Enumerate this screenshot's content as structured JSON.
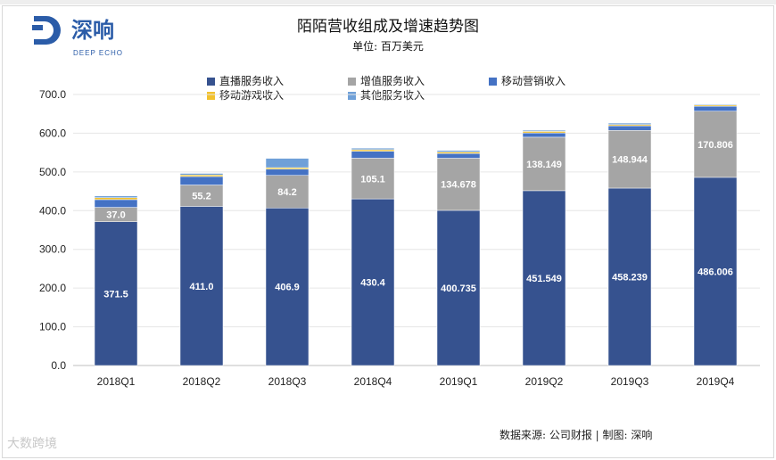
{
  "brand": {
    "name": "深响",
    "sub": "DEEP ECHO"
  },
  "watermark": "大数跨境",
  "source": "数据来源: 公司财报 | 制图: 深响",
  "chart_data": {
    "type": "bar",
    "stacked": true,
    "title": "陌陌营收组成及增速趋势图",
    "subtitle": "单位: 百万美元",
    "categories": [
      "2018Q1",
      "2018Q2",
      "2018Q3",
      "2018Q4",
      "2019Q1",
      "2019Q2",
      "2019Q3",
      "2019Q4"
    ],
    "ylim": [
      0,
      700
    ],
    "yticks": [
      "0.0",
      "100.0",
      "200.0",
      "300.0",
      "400.0",
      "500.0",
      "600.0",
      "700.0"
    ],
    "grid": true,
    "legend_position": "top",
    "series": [
      {
        "name": "直播服务收入",
        "color": "#36528f",
        "values": [
          371.5,
          411.0,
          406.9,
          430.4,
          400.735,
          451.549,
          458.239,
          486.006
        ],
        "labels": [
          "371.5",
          "411.0",
          "406.9",
          "430.4",
          "400.735",
          "451.549",
          "458.239",
          "486.006"
        ]
      },
      {
        "name": "增值服务收入",
        "color": "#a5a5a5",
        "values": [
          37.0,
          55.2,
          84.2,
          105.1,
          134.678,
          138.149,
          148.944,
          170.806
        ],
        "labels": [
          "37.0",
          "55.2",
          "84.2",
          "105.1",
          "134.678",
          "138.149",
          "148.944",
          "170.806"
        ]
      },
      {
        "name": "移动营销收入",
        "color": "#4472c4",
        "values": [
          20,
          22,
          16,
          18,
          12,
          11,
          12,
          13
        ]
      },
      {
        "name": "移动游戏收入",
        "color": "#f2c12e",
        "values": [
          5,
          4,
          4,
          4,
          4,
          4,
          3,
          3
        ]
      },
      {
        "name": "其他服务收入",
        "color": "#6fa0d8",
        "values": [
          4.5,
          4,
          24,
          4,
          4,
          3,
          4,
          2
        ]
      }
    ]
  }
}
